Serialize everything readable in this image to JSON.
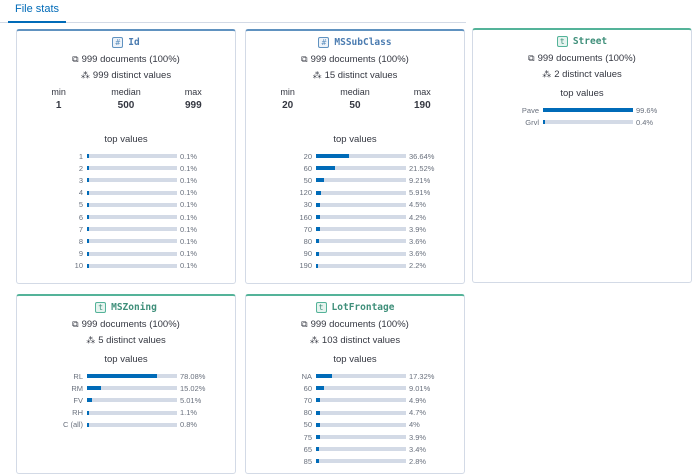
{
  "tab": {
    "label": "File stats"
  },
  "cards": {
    "id": {
      "type_glyph": "#",
      "name": "Id",
      "docs": "999 documents (100%)",
      "distinct": "999 distinct values",
      "min_label": "min",
      "median_label": "median",
      "max_label": "max",
      "min": "1",
      "median": "500",
      "max": "999",
      "top_title": "top values",
      "top": [
        {
          "label": "1",
          "pct": "0.1%",
          "value": 0.1
        },
        {
          "label": "2",
          "pct": "0.1%",
          "value": 0.1
        },
        {
          "label": "3",
          "pct": "0.1%",
          "value": 0.1
        },
        {
          "label": "4",
          "pct": "0.1%",
          "value": 0.1
        },
        {
          "label": "5",
          "pct": "0.1%",
          "value": 0.1
        },
        {
          "label": "6",
          "pct": "0.1%",
          "value": 0.1
        },
        {
          "label": "7",
          "pct": "0.1%",
          "value": 0.1
        },
        {
          "label": "8",
          "pct": "0.1%",
          "value": 0.1
        },
        {
          "label": "9",
          "pct": "0.1%",
          "value": 0.1
        },
        {
          "label": "10",
          "pct": "0.1%",
          "value": 0.1
        }
      ]
    },
    "mssubclass": {
      "type_glyph": "#",
      "name": "MSSubClass",
      "docs": "999 documents (100%)",
      "distinct": "15 distinct values",
      "min_label": "min",
      "median_label": "median",
      "max_label": "max",
      "min": "20",
      "median": "50",
      "max": "190",
      "top_title": "top values",
      "top": [
        {
          "label": "20",
          "pct": "36.64%",
          "value": 36.64
        },
        {
          "label": "60",
          "pct": "21.52%",
          "value": 21.52
        },
        {
          "label": "50",
          "pct": "9.21%",
          "value": 9.21
        },
        {
          "label": "120",
          "pct": "5.91%",
          "value": 5.91
        },
        {
          "label": "30",
          "pct": "4.5%",
          "value": 4.5
        },
        {
          "label": "160",
          "pct": "4.2%",
          "value": 4.2
        },
        {
          "label": "70",
          "pct": "3.9%",
          "value": 3.9
        },
        {
          "label": "80",
          "pct": "3.6%",
          "value": 3.6
        },
        {
          "label": "90",
          "pct": "3.6%",
          "value": 3.6
        },
        {
          "label": "190",
          "pct": "2.2%",
          "value": 2.2
        }
      ]
    },
    "street": {
      "type_glyph": "t",
      "name": "Street",
      "docs": "999 documents (100%)",
      "distinct": "2 distinct values",
      "top_title": "top values",
      "top": [
        {
          "label": "Pave",
          "pct": "99.6%",
          "value": 99.6
        },
        {
          "label": "Grvl",
          "pct": "0.4%",
          "value": 0.4
        }
      ]
    },
    "mszoning": {
      "type_glyph": "t",
      "name": "MSZoning",
      "docs": "999 documents (100%)",
      "distinct": "5 distinct values",
      "top_title": "top values",
      "top": [
        {
          "label": "RL",
          "pct": "78.08%",
          "value": 78.08
        },
        {
          "label": "RM",
          "pct": "15.02%",
          "value": 15.02
        },
        {
          "label": "FV",
          "pct": "5.01%",
          "value": 5.01
        },
        {
          "label": "RH",
          "pct": "1.1%",
          "value": 1.1
        },
        {
          "label": "C (all)",
          "pct": "0.8%",
          "value": 0.8
        }
      ]
    },
    "lotfrontage": {
      "type_glyph": "t",
      "name": "LotFrontage",
      "docs": "999 documents (100%)",
      "distinct": "103 distinct values",
      "top_title": "top values",
      "top": [
        {
          "label": "NA",
          "pct": "17.32%",
          "value": 17.32
        },
        {
          "label": "60",
          "pct": "9.01%",
          "value": 9.01
        },
        {
          "label": "70",
          "pct": "4.9%",
          "value": 4.9
        },
        {
          "label": "80",
          "pct": "4.7%",
          "value": 4.7
        },
        {
          "label": "50",
          "pct": "4%",
          "value": 4
        },
        {
          "label": "75",
          "pct": "3.9%",
          "value": 3.9
        },
        {
          "label": "65",
          "pct": "3.4%",
          "value": 3.4
        },
        {
          "label": "85",
          "pct": "2.8%",
          "value": 2.8
        }
      ]
    }
  }
}
